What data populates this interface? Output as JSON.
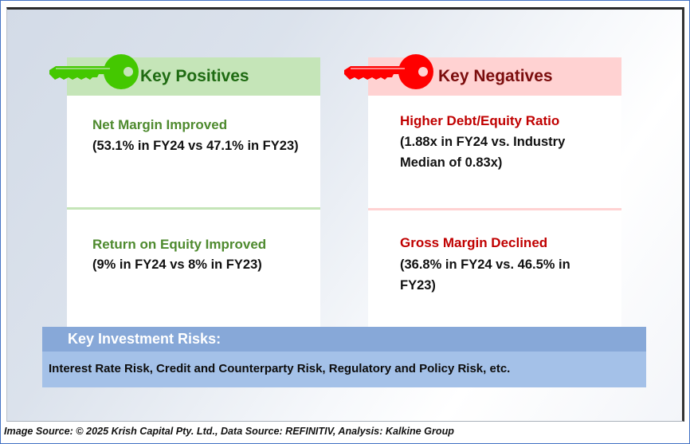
{
  "positives": {
    "header": "Key Positives",
    "icon": "key-icon",
    "color": "#44c800",
    "items": [
      {
        "title": "Net Margin Improved",
        "desc": "(53.1% in FY24 vs 47.1% in FY23)"
      },
      {
        "title": "Return on Equity Improved",
        "desc": "(9% in FY24 vs 8% in FY23)"
      }
    ]
  },
  "negatives": {
    "header": "Key Negatives",
    "icon": "key-icon",
    "color": "#ff0000",
    "items": [
      {
        "title": "Higher Debt/Equity Ratio",
        "desc": "(1.88x in FY24 vs. Industry Median of 0.83x)"
      },
      {
        "title": "Gross Margin Declined",
        "desc": "(36.8% in FY24 vs. 46.5% in FY23)"
      }
    ]
  },
  "risks": {
    "header": "Key Investment Risks:",
    "body": "Interest Rate Risk, Credit and Counterparty Risk, Regulatory and Policy Risk, etc."
  },
  "footer": "Image Source: © 2025 Krish Capital Pty. Ltd., Data Source: REFINITIV, Analysis: Kalkine Group"
}
